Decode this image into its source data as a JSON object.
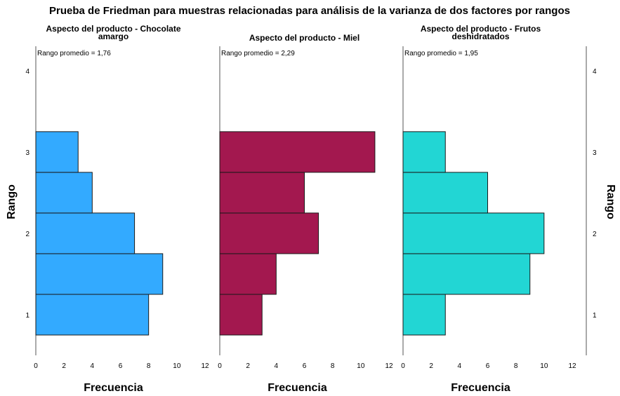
{
  "chart_data": {
    "type": "bar",
    "orientation": "horizontal-histogram",
    "title": "Prueba de Friedman para muestras relacionadas para análisis de la varianza de dos factores por rangos",
    "ylabel": "Rango",
    "xlabel": "Frecuencia",
    "y_ticks": [
      "1",
      "2",
      "3",
      "4"
    ],
    "x_ticks": [
      "0",
      "2",
      "4",
      "6",
      "8",
      "10",
      "12"
    ],
    "xlim": [
      0,
      12
    ],
    "ylim": [
      0.5,
      4.3
    ],
    "bin_width": 0.5,
    "bin_centers": [
      1.0,
      1.5,
      2.0,
      2.5,
      3.0
    ],
    "panels": [
      {
        "title_lines": [
          "Aspecto del producto - Chocolate",
          "amargo"
        ],
        "annotation": "Rango promedio = 1,76",
        "color": "#33aaff",
        "values": [
          8,
          9,
          7,
          4,
          3
        ]
      },
      {
        "title_lines": [
          "Aspecto del producto - Miel"
        ],
        "annotation": "Rango promedio = 2,29",
        "color": "#a3184f",
        "values": [
          3,
          4,
          7,
          6,
          11
        ]
      },
      {
        "title_lines": [
          "Aspecto del producto - Frutos",
          "deshidratados"
        ],
        "annotation": "Rango promedio = 1,95",
        "color": "#22d6d4",
        "values": [
          3,
          9,
          10,
          6,
          3
        ]
      }
    ]
  }
}
